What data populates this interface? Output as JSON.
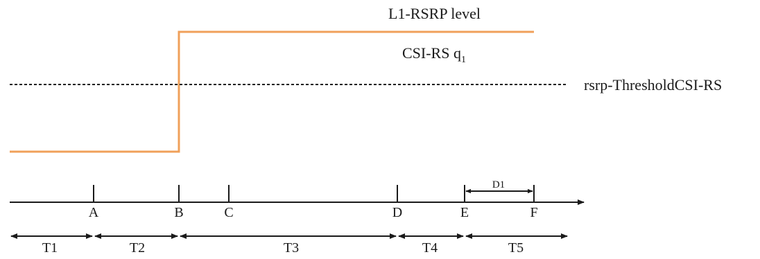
{
  "signal": {
    "level_label": "L1-RSRP level",
    "level_color": "#f0a05a",
    "csi_label_prefix": "CSI-RS q",
    "csi_label_subscript": "1",
    "threshold_label": "rsrp-ThresholdCSI-RS"
  },
  "timeline": {
    "points": [
      "A",
      "B",
      "C",
      "D",
      "E",
      "F"
    ],
    "duration_label": "D1",
    "intervals": [
      "T1",
      "T2",
      "T3",
      "T4",
      "T5"
    ]
  }
}
